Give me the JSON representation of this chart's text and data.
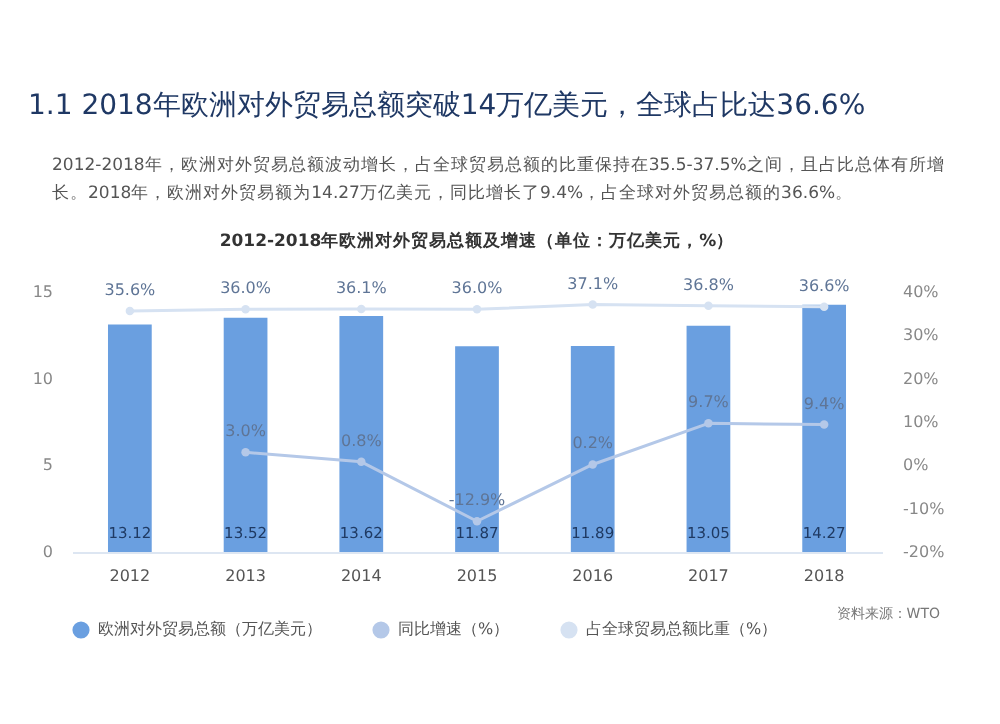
{
  "chart_data": {
    "type": "bar",
    "title": "1.1  2018年欧洲对外贸易总额突破14万亿美元，全球占比达36.6%",
    "subtitle": "2012-2018年欧洲对外贸易总额及增速（单位：万亿美元，%）",
    "annotations": [
      "2012-2018年，欧洲对外贸易总额波动增长，占全球贸易总额的比重保持在35.5-37.5%之间，且占比总体有所增长。2018年，欧洲对外贸易额为14.27万亿美元，同比增长了9.4%，占全球对外贸易总额的36.6%。",
      "资料来源：WTO"
    ],
    "categories": [
      "2012",
      "2013",
      "2014",
      "2015",
      "2016",
      "2017",
      "2018"
    ],
    "series": [
      {
        "name": "欧洲对外贸易总额（万亿美元）",
        "color": "#6a9fe0",
        "values": [
          13.12,
          13.52,
          13.62,
          11.87,
          11.89,
          13.05,
          14.27
        ],
        "value_labels": [
          "13.12",
          "13.52",
          "13.62",
          "11.87",
          "11.89",
          "13.05",
          "14.27"
        ]
      },
      {
        "name": "同比增速（%）",
        "type": "line",
        "axis": "y2",
        "color": "#b4c8e8",
        "values": [
          null,
          3.0,
          0.8,
          -12.9,
          0.2,
          9.7,
          9.4
        ],
        "value_labels": [
          null,
          "3.0%",
          "0.8%",
          "-12.9%",
          "0.2%",
          "9.7%",
          "9.4%"
        ]
      },
      {
        "name": "占全球贸易总额比重（%）",
        "type": "line",
        "axis": "y2",
        "color": "#d6e2f2",
        "values": [
          35.6,
          36.0,
          36.1,
          36.0,
          37.1,
          36.8,
          36.6
        ],
        "value_labels": [
          "35.6%",
          "36.0%",
          "36.1%",
          "36.0%",
          "37.1%",
          "36.8%",
          "36.6%"
        ]
      }
    ],
    "ylim": [
      0,
      15
    ],
    "yticks": [
      0,
      5,
      10,
      15
    ],
    "y2lim": [
      -20,
      40
    ],
    "y2ticks": [
      {
        "value": -20,
        "label": "-20%"
      },
      {
        "value": -10,
        "label": "-10%"
      },
      {
        "value": 0,
        "label": "0%"
      },
      {
        "value": 10,
        "label": "10%"
      },
      {
        "value": 20,
        "label": "20%"
      },
      {
        "value": 30,
        "label": "30%"
      },
      {
        "value": 40,
        "label": "40%"
      }
    ],
    "legend": "bottom",
    "marker": "circle",
    "line_style": "solid"
  }
}
